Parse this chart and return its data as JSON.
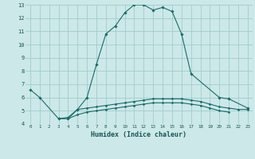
{
  "xlabel": "Humidex (Indice chaleur)",
  "bg_color": "#cce8e8",
  "grid_color": "#a0cccc",
  "line_color": "#1a6b6b",
  "xlim": [
    -0.5,
    23.5
  ],
  "ylim": [
    4,
    13
  ],
  "yticks": [
    4,
    5,
    6,
    7,
    8,
    9,
    10,
    11,
    12,
    13
  ],
  "xticks": [
    0,
    1,
    2,
    3,
    4,
    5,
    6,
    7,
    8,
    9,
    10,
    11,
    12,
    13,
    14,
    15,
    16,
    17,
    18,
    19,
    20,
    21,
    22,
    23
  ],
  "curve1_x": [
    0,
    1,
    3,
    4,
    5,
    6,
    7,
    8,
    9,
    10,
    11,
    12,
    13,
    14,
    15,
    16,
    17,
    20,
    21,
    23
  ],
  "curve1_y": [
    6.6,
    6.0,
    4.4,
    4.4,
    5.1,
    6.0,
    8.5,
    10.8,
    11.4,
    12.4,
    13.0,
    13.0,
    12.6,
    12.8,
    12.5,
    10.8,
    7.8,
    6.0,
    5.9,
    5.2
  ],
  "curve2_x": [
    3,
    4,
    5,
    6,
    7,
    8,
    9,
    10,
    11,
    12,
    13,
    14,
    15,
    16,
    17,
    18,
    19,
    20,
    21,
    22,
    23
  ],
  "curve2_y": [
    4.4,
    4.5,
    5.1,
    5.2,
    5.3,
    5.4,
    5.5,
    5.6,
    5.7,
    5.8,
    5.9,
    5.9,
    5.9,
    5.9,
    5.8,
    5.7,
    5.5,
    5.3,
    5.2,
    5.1,
    5.1
  ],
  "curve3_x": [
    4,
    5,
    6,
    7,
    8,
    9,
    10,
    11,
    12,
    13,
    14,
    15,
    16,
    17,
    18,
    19,
    20,
    21
  ],
  "curve3_y": [
    4.4,
    4.7,
    4.9,
    5.0,
    5.1,
    5.2,
    5.3,
    5.4,
    5.5,
    5.6,
    5.6,
    5.6,
    5.6,
    5.5,
    5.4,
    5.2,
    5.0,
    4.9
  ]
}
